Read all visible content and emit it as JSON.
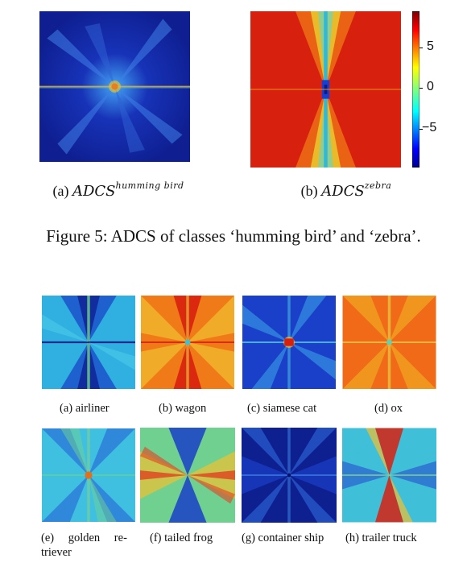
{
  "figure5": {
    "panel_a": {
      "prefix": "(a) ",
      "base": "ADCS",
      "sup": "humming bird"
    },
    "panel_b": {
      "prefix": "(b) ",
      "base": "ADCS",
      "sup": "zebra"
    },
    "caption": "Figure 5: ADCS of classes ‘humming bird’ and ‘zebra’.",
    "colorbar": {
      "ticks": [
        "5",
        "0",
        "−5"
      ],
      "colormap": "jet"
    }
  },
  "figure6": {
    "row1": [
      {
        "caption": "(a) airliner"
      },
      {
        "caption": "(b) wagon"
      },
      {
        "caption": "(c) siamese cat"
      },
      {
        "caption": "(d) ox"
      }
    ],
    "row2": [
      {
        "caption_line1": "(e) golden re-",
        "caption_line2": "triever"
      },
      {
        "caption": "(f) tailed frog"
      },
      {
        "caption": "(g) container ship"
      },
      {
        "caption": "(h) trailer truck"
      }
    ]
  },
  "colors": {
    "deep_blue": "#10208c",
    "blue": "#1a3fd0",
    "cyan": "#2fb8e0",
    "green_cyan": "#5fd0a0",
    "yellow": "#f0d020",
    "orange": "#f08010",
    "red": "#d81a10"
  }
}
